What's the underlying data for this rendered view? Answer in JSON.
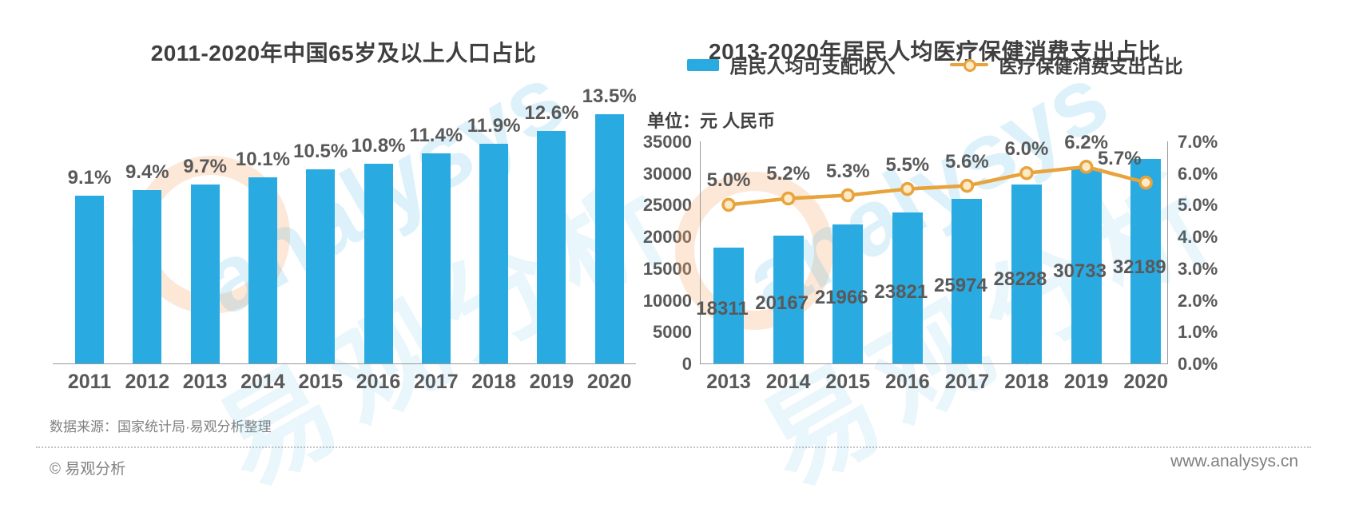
{
  "colors": {
    "bar": "#29ABE2",
    "line": "#E8A33C",
    "marker_fill": "#FDEBC8",
    "title_text": "#3F3F3F",
    "label_text": "#595959",
    "axis_line": "#9A9A9A",
    "footer_text": "#808080"
  },
  "watermark": {
    "brand": "analysys",
    "brand_cn": "易观分析"
  },
  "footer": {
    "source_note": "数据来源：国家统计局·易观分析整理",
    "copyright": "© 易观分析",
    "website": "www.analysys.cn"
  },
  "chart_data": [
    {
      "type": "bar",
      "title": "2011-2020年中国65岁及以上人口占比",
      "categories": [
        "2011",
        "2012",
        "2013",
        "2014",
        "2015",
        "2016",
        "2017",
        "2018",
        "2019",
        "2020"
      ],
      "values": [
        9.1,
        9.4,
        9.7,
        10.1,
        10.5,
        10.8,
        11.4,
        11.9,
        12.6,
        13.5
      ],
      "labels": [
        "9.1%",
        "9.4%",
        "9.7%",
        "10.1%",
        "10.5%",
        "10.8%",
        "11.4%",
        "11.9%",
        "12.6%",
        "13.5%"
      ],
      "ylim": [
        0,
        14
      ],
      "grid": false,
      "legend_position": "none"
    },
    {
      "type": "bar+line",
      "title": "2013-2020年居民人均医疗保健消费支出占比",
      "unit_label": "单位：元 人民币",
      "categories": [
        "2013",
        "2014",
        "2015",
        "2016",
        "2017",
        "2018",
        "2019",
        "2020"
      ],
      "grid": false,
      "legend_position": "top",
      "left_axis": {
        "max": 35000,
        "ticks": [
          35000,
          30000,
          25000,
          20000,
          15000,
          10000,
          5000,
          0
        ]
      },
      "right_axis": {
        "max": 7.0,
        "ticks_display": [
          "7.0%",
          "6.0%",
          "5.0%",
          "4.0%",
          "3.0%",
          "2.0%",
          "1.0%",
          "0.0%"
        ]
      },
      "series": [
        {
          "name": "居民人均可支配收入",
          "type": "bar",
          "axis": "left",
          "values": [
            18311,
            20167,
            21966,
            23821,
            25974,
            28228,
            30733,
            32189
          ],
          "labels": [
            "18311",
            "20167",
            "21966",
            "23821",
            "25974",
            "28228",
            "30733",
            "32189"
          ]
        },
        {
          "name": "医疗保健消费支出占比",
          "type": "line",
          "axis": "right",
          "values": [
            5.0,
            5.2,
            5.3,
            5.5,
            5.6,
            6.0,
            6.2,
            5.7
          ],
          "labels": [
            "5.0%",
            "5.2%",
            "5.3%",
            "5.5%",
            "5.6%",
            "6.0%",
            "6.2%",
            "5.7%"
          ]
        }
      ]
    }
  ]
}
